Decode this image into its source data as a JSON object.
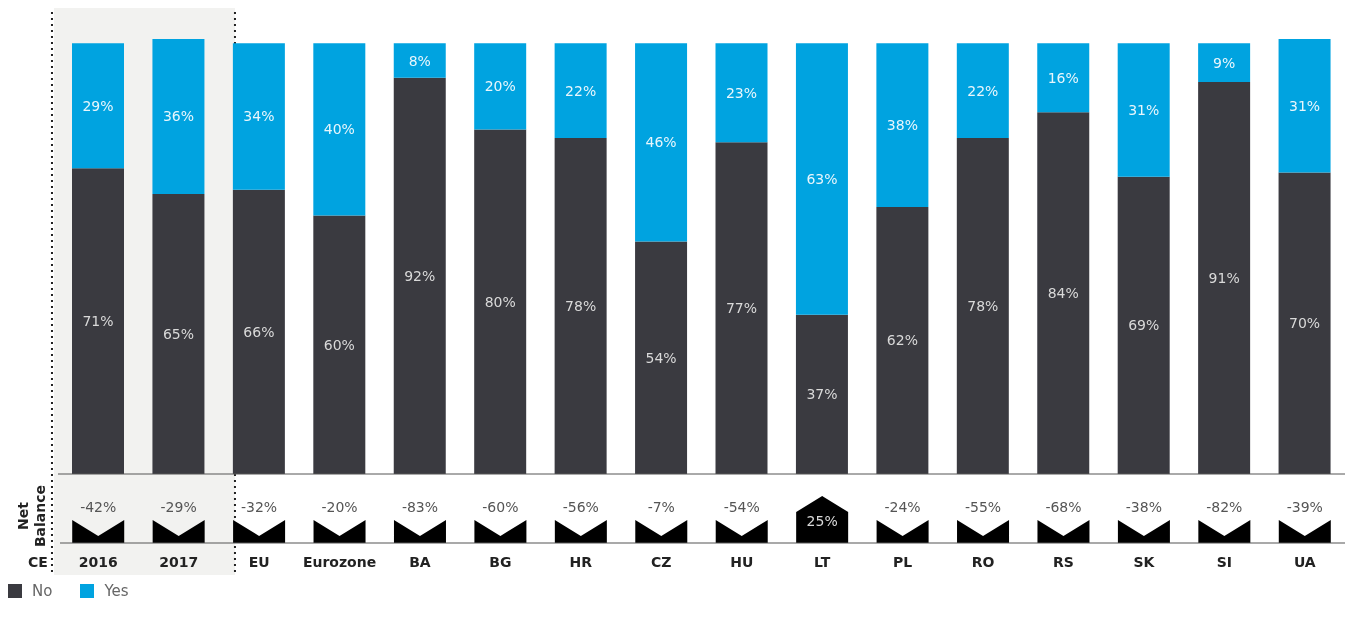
{
  "chart_data": {
    "type": "bar",
    "stacked": true,
    "categories": [
      "2016",
      "2017",
      "EU",
      "Eurozone",
      "BA",
      "BG",
      "HR",
      "CZ",
      "HU",
      "LT",
      "PL",
      "RO",
      "RS",
      "SK",
      "SI",
      "UA"
    ],
    "series": [
      {
        "name": "No",
        "color": "#3a3a40",
        "values": [
          71,
          65,
          66,
          60,
          92,
          80,
          78,
          54,
          77,
          37,
          62,
          78,
          84,
          69,
          91,
          70
        ],
        "value_labels": [
          "71%",
          "65%",
          "66%",
          "60%",
          "92%",
          "80%",
          "78%",
          "54%",
          "77%",
          "37%",
          "62%",
          "78%",
          "84%",
          "69%",
          "91%",
          "70%"
        ]
      },
      {
        "name": "Yes",
        "color": "#00a3e0",
        "values": [
          29,
          36,
          34,
          40,
          8,
          20,
          22,
          46,
          23,
          63,
          38,
          22,
          16,
          31,
          9,
          31
        ],
        "value_labels": [
          "29%",
          "36%",
          "34%",
          "40%",
          "8%",
          "20%",
          "22%",
          "46%",
          "23%",
          "63%",
          "38%",
          "22%",
          "16%",
          "31%",
          "9%",
          "31%"
        ]
      }
    ],
    "legend": "bottom left",
    "annotations": [
      "Net Balance",
      "CE",
      "-42%",
      "-29%",
      "-32%",
      "-20%",
      "-83%",
      "-60%",
      "-56%",
      "-7%",
      "-54%",
      "25%",
      "-24%",
      "-55%",
      "-68%",
      "-38%",
      "-82%",
      "-39%"
    ]
  }
}
